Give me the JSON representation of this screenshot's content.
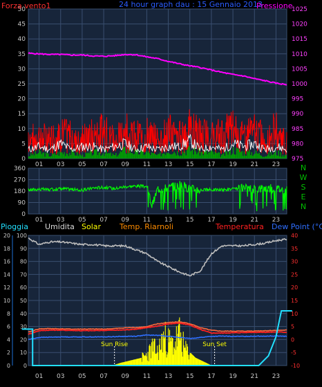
{
  "colors": {
    "background": "#000000",
    "plot_bg": "#17253a",
    "grid": "#3a4f70",
    "tick_text": "#c8c8c8",
    "wind": "#ff0000",
    "wind_gust": "#ffffff",
    "wind_avg": "#00a000",
    "pressure": "#ff00ff",
    "wind_dir": "#00ff00",
    "humidity": "#bdbdbd",
    "solar": "#ffff00",
    "temp_indoor": "#ff6a3d",
    "temperature": "#ff2020",
    "dew_point": "#2f6fff",
    "rain": "#22e0ff",
    "compass": "#00c000"
  },
  "chart_data": [
    {
      "type": "line",
      "title": "24 hour graph dau : 15 Gennaio 2013",
      "left_axis_label": "Forza vento1",
      "right_axis_label": "Pressione",
      "left_ticks": [
        "0",
        "5",
        "10",
        "15",
        "20",
        "25",
        "30",
        "35",
        "40",
        "45",
        "50"
      ],
      "right_ticks": [
        "975",
        "980",
        "985",
        "990",
        "995",
        "1000",
        "1005",
        "1010",
        "1015",
        "1020",
        "1025"
      ],
      "x_ticks": [
        "01",
        "03",
        "05",
        "07",
        "09",
        "11",
        "13",
        "15",
        "17",
        "19",
        "21",
        "23"
      ],
      "left_ylim": [
        0,
        50
      ],
      "right_ylim": [
        975,
        1025
      ],
      "series": [
        {
          "key": "pressure",
          "axis": "right",
          "x": [
            0,
            1,
            2,
            3,
            4,
            5,
            6,
            7,
            8,
            9,
            10,
            11,
            12,
            13,
            14,
            15,
            16,
            17,
            18,
            19,
            20,
            21,
            22,
            23,
            24
          ],
          "values": [
            1010.2,
            1010,
            1009.8,
            1009.8,
            1009.6,
            1009.6,
            1009.3,
            1009.2,
            1009.4,
            1009.8,
            1009.7,
            1009,
            1008.4,
            1007.5,
            1006.7,
            1006,
            1005.4,
            1004.6,
            1003.8,
            1003.1,
            1002.6,
            1001.7,
            1001,
            1000.2,
            999.7
          ]
        },
        {
          "key": "wind",
          "axis": "left",
          "x": [
            0,
            1,
            2,
            3,
            4,
            5,
            6,
            7,
            8,
            9,
            10,
            11,
            12,
            13,
            14,
            15,
            16,
            17,
            18,
            19,
            20,
            21,
            22,
            23,
            24
          ],
          "values": [
            8,
            9,
            8,
            10,
            9,
            8,
            10,
            11,
            8,
            12,
            9,
            10,
            8,
            11,
            9,
            12,
            10,
            9,
            10,
            13,
            9,
            11,
            8,
            12,
            7
          ]
        },
        {
          "key": "wind_gust",
          "axis": "left",
          "x": [
            0,
            1,
            2,
            3,
            4,
            5,
            6,
            7,
            8,
            9,
            10,
            11,
            12,
            13,
            14,
            15,
            16,
            17,
            18,
            19,
            20,
            21,
            22,
            23,
            24
          ],
          "values": [
            3,
            4,
            3,
            5,
            3,
            4,
            4,
            3,
            4,
            5,
            3,
            4,
            3,
            4,
            4,
            6,
            3,
            4,
            3,
            5,
            4,
            5,
            3,
            4,
            3
          ]
        },
        {
          "key": "wind_avg",
          "axis": "left",
          "x": [
            0,
            1,
            2,
            3,
            4,
            5,
            6,
            7,
            8,
            9,
            10,
            11,
            12,
            13,
            14,
            15,
            16,
            17,
            18,
            19,
            20,
            21,
            22,
            23,
            24
          ],
          "values": [
            1,
            2,
            1,
            2,
            2,
            1,
            2,
            2,
            1,
            3,
            2,
            2,
            1,
            3,
            2,
            3,
            2,
            2,
            1,
            3,
            2,
            2,
            1,
            2,
            1
          ]
        }
      ]
    },
    {
      "type": "line",
      "ylim": [
        0,
        360
      ],
      "y_ticks": [
        "0",
        "90",
        "180",
        "270",
        "360"
      ],
      "x_ticks": [
        "01",
        "03",
        "05",
        "07",
        "09",
        "11",
        "13",
        "15",
        "17",
        "19",
        "21",
        "23"
      ],
      "compass": [
        "N",
        "W",
        "S",
        "E",
        "N"
      ],
      "series": [
        {
          "key": "wind_dir",
          "x": [
            0,
            1,
            2,
            3,
            4,
            5,
            6,
            7,
            8,
            9,
            10,
            11,
            11.5,
            12,
            13,
            14,
            15,
            16,
            17,
            18,
            19,
            20,
            21,
            22,
            23,
            24
          ],
          "values": [
            190,
            195,
            190,
            200,
            195,
            185,
            205,
            210,
            200,
            215,
            220,
            215,
            60,
            200,
            205,
            230,
            200,
            190,
            190,
            190,
            195,
            200,
            195,
            205,
            200,
            190
          ]
        }
      ]
    },
    {
      "type": "line",
      "legend": [
        "Pioggia",
        "Umidita",
        "Solar",
        "Temp. Riarnoli",
        "Temperatura",
        "Dew Point (°C)"
      ],
      "left_ticks": [
        "0",
        "10",
        "20",
        "30",
        "40",
        "50",
        "60",
        "70",
        "80",
        "90",
        "100"
      ],
      "right_ticks": [
        "-10",
        "-5",
        "0",
        "5",
        "10",
        "15",
        "20",
        "25",
        "30",
        "35",
        "40"
      ],
      "rain_ticks": [
        "0",
        "2",
        "4",
        "6",
        "8",
        "10",
        "12",
        "14",
        "16",
        "18",
        "20"
      ],
      "x_ticks": [
        "01",
        "03",
        "05",
        "07",
        "09",
        "11",
        "13",
        "15",
        "17",
        "19",
        "21",
        "23"
      ],
      "left_ylim": [
        0,
        100
      ],
      "right_ylim": [
        -10,
        40
      ],
      "annotations": [
        {
          "label": "Sun Rise",
          "x": 8.0
        },
        {
          "label": "Sun Set",
          "x": 17.3
        }
      ],
      "series": [
        {
          "key": "humidity",
          "axis": "left",
          "x": [
            0,
            1,
            2,
            3,
            4,
            5,
            6,
            7,
            8,
            9,
            10,
            11,
            12,
            13,
            14,
            15,
            16,
            17,
            18,
            19,
            20,
            21,
            22,
            23,
            24
          ],
          "values": [
            98,
            93,
            95,
            95,
            94,
            93,
            93,
            92,
            92,
            92,
            89,
            86,
            80,
            76,
            72,
            69,
            73,
            86,
            92,
            92,
            92,
            93,
            94,
            96,
            97
          ]
        },
        {
          "key": "temp_indoor",
          "axis": "right",
          "x": [
            0,
            1,
            2,
            3,
            4,
            5,
            6,
            7,
            8,
            9,
            10,
            11,
            12,
            13,
            14,
            15,
            16,
            17,
            18,
            19,
            20,
            21,
            22,
            23,
            24
          ],
          "values": [
            2.8,
            4.1,
            4.2,
            4.1,
            4,
            4,
            4,
            4,
            4.2,
            4.5,
            4.6,
            4.9,
            6,
            6.5,
            6.8,
            6.1,
            4.5,
            3.5,
            3.2,
            3.2,
            3.2,
            3.3,
            3.4,
            3.5,
            3.6
          ]
        },
        {
          "key": "temperature",
          "axis": "right",
          "x": [
            0,
            1,
            2,
            3,
            4,
            5,
            6,
            7,
            8,
            9,
            10,
            11,
            12,
            13,
            14,
            15,
            16,
            17,
            18,
            19,
            20,
            21,
            22,
            23,
            24
          ],
          "values": [
            2,
            3.4,
            3.6,
            3.6,
            3.5,
            3.4,
            3.4,
            3.5,
            3.6,
            3.7,
            4,
            4.5,
            5.2,
            6,
            6.3,
            5.6,
            3.8,
            2.5,
            2.5,
            2.6,
            2.7,
            2.8,
            2.8,
            2.9,
            2.8
          ]
        },
        {
          "key": "dew_point",
          "axis": "right",
          "x": [
            0,
            1,
            2,
            3,
            4,
            5,
            6,
            7,
            8,
            9,
            10,
            11,
            12,
            13,
            14,
            15,
            16,
            17,
            18,
            19,
            20,
            21,
            22,
            23,
            24
          ],
          "values": [
            0,
            0.8,
            0.9,
            1,
            1,
            1,
            1,
            1,
            1.1,
            1.2,
            1.3,
            1.7,
            1.6,
            1.3,
            0.8,
            0.4,
            0.8,
            1.2,
            1.3,
            1.2,
            1.2,
            1.3,
            1.3,
            1.4,
            1.2
          ]
        },
        {
          "key": "rain",
          "axis": "rain",
          "x": [
            -0.6,
            0.4,
            0.4,
            21.4,
            22.3,
            23,
            23.5,
            23.5,
            24.5
          ],
          "values": [
            5.6,
            5.6,
            0,
            0,
            1.5,
            4.4,
            8.4,
            8.4,
            8.4
          ]
        },
        {
          "key": "solar",
          "axis": "left",
          "x": [
            7.8,
            8.5,
            9,
            9.5,
            10,
            10.5,
            11,
            11.5,
            12,
            12.5,
            13,
            13.5,
            14,
            14.5,
            15,
            15.5,
            16,
            16.5,
            17
          ],
          "values": [
            0,
            2,
            3,
            4,
            5,
            6,
            8,
            14,
            10,
            22,
            18,
            16,
            24,
            12,
            10,
            6,
            4,
            2,
            0
          ]
        }
      ]
    }
  ]
}
